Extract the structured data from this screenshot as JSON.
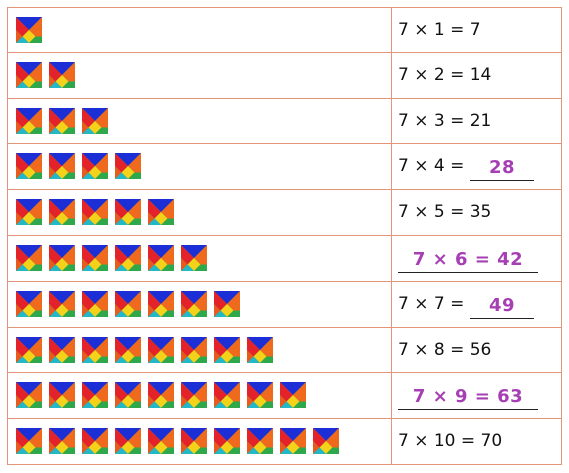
{
  "rows": [
    {
      "equation": "7 × 1 = 7"
    },
    {
      "equation": "7 × 2 = 14"
    },
    {
      "equation": "7 × 3 = 21"
    },
    {
      "equation": "7 × 4 =",
      "answer": "28"
    },
    {
      "equation": "7 × 5 = 35"
    },
    {
      "answer": "7 × 6 = 42"
    },
    {
      "equation": "7 × 7 =",
      "answer": "49"
    },
    {
      "equation": "7 × 8 = 56"
    },
    {
      "answer": "7 × 9 = 63"
    },
    {
      "equation": "7 × 10 = 70"
    }
  ]
}
